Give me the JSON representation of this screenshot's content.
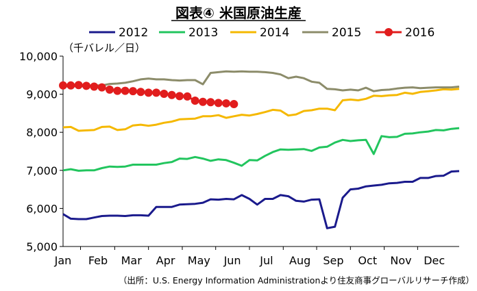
{
  "chart_data": {
    "type": "line",
    "title": "図表④ 米国原油生産",
    "ylabel": "（千バレル／日）",
    "ylim": [
      5000,
      10000
    ],
    "yticks": [
      5000,
      6000,
      7000,
      8000,
      9000,
      10000
    ],
    "ytick_labels": [
      "5,000",
      "6,000",
      "7,000",
      "8,000",
      "9,000",
      "10,000"
    ],
    "x_unit": "week",
    "xlim": [
      1,
      52
    ],
    "month_labels": [
      "Jan",
      "Feb",
      "Mar",
      "Apr",
      "May",
      "Jun",
      "Jul",
      "Aug",
      "Sep",
      "Oct",
      "Nov",
      "Dec"
    ],
    "month_label_weeks": [
      1,
      5.5,
      9.8,
      14.2,
      18.5,
      22.8,
      27.2,
      31.5,
      35.8,
      40.2,
      44.5,
      48.8
    ],
    "grid": false,
    "legend_position": "top",
    "source": "（出所：U.S. Energy Information Administrationより住友商事グローバルリサーチ作成）",
    "series": [
      {
        "name": "2012",
        "color": "#1a1a8c",
        "marker": "none",
        "values": [
          5850,
          5730,
          5720,
          5720,
          5760,
          5800,
          5810,
          5810,
          5800,
          5820,
          5820,
          5810,
          6040,
          6040,
          6040,
          6100,
          6110,
          6120,
          6150,
          6240,
          6230,
          6250,
          6240,
          6350,
          6250,
          6100,
          6250,
          6250,
          6350,
          6320,
          6200,
          6180,
          6230,
          6240,
          5480,
          5520,
          6280,
          6500,
          6520,
          6580,
          6600,
          6620,
          6660,
          6670,
          6700,
          6700,
          6800,
          6800,
          6850,
          6860,
          6970,
          6980
        ]
      },
      {
        "name": "2013",
        "color": "#22c55e",
        "marker": "none",
        "values": [
          7000,
          7030,
          6990,
          7000,
          7000,
          7060,
          7100,
          7090,
          7100,
          7150,
          7150,
          7150,
          7150,
          7190,
          7220,
          7310,
          7300,
          7350,
          7310,
          7250,
          7290,
          7270,
          7200,
          7120,
          7270,
          7260,
          7380,
          7480,
          7550,
          7540,
          7550,
          7560,
          7510,
          7600,
          7620,
          7730,
          7800,
          7770,
          7790,
          7800,
          7430,
          7900,
          7870,
          7880,
          7960,
          7970,
          8000,
          8020,
          8060,
          8050,
          8090,
          8110
        ]
      },
      {
        "name": "2014",
        "color": "#f5b800",
        "marker": "none",
        "values": [
          8130,
          8140,
          8040,
          8050,
          8060,
          8140,
          8150,
          8060,
          8080,
          8180,
          8200,
          8170,
          8200,
          8250,
          8280,
          8340,
          8350,
          8360,
          8420,
          8420,
          8450,
          8380,
          8420,
          8460,
          8440,
          8480,
          8530,
          8590,
          8570,
          8440,
          8470,
          8560,
          8580,
          8620,
          8620,
          8580,
          8840,
          8860,
          8840,
          8880,
          8960,
          8950,
          8970,
          8980,
          9040,
          9010,
          9060,
          9080,
          9100,
          9130,
          9120,
          9140
        ]
      },
      {
        "name": "2015",
        "color": "#8c8c6a",
        "marker": "none",
        "values": [
          9200,
          9220,
          9210,
          9220,
          9230,
          9230,
          9270,
          9280,
          9300,
          9340,
          9390,
          9410,
          9390,
          9390,
          9370,
          9360,
          9370,
          9370,
          9260,
          9560,
          9580,
          9600,
          9590,
          9600,
          9590,
          9590,
          9580,
          9560,
          9520,
          9420,
          9460,
          9420,
          9330,
          9300,
          9140,
          9130,
          9100,
          9120,
          9100,
          9170,
          9080,
          9110,
          9120,
          9150,
          9170,
          9180,
          9160,
          9170,
          9180,
          9180,
          9180,
          9200
        ]
      },
      {
        "name": "2016",
        "color": "#e11d1d",
        "marker": "circle",
        "values": [
          9230,
          9230,
          9240,
          9220,
          9200,
          9180,
          9120,
          9090,
          9090,
          9080,
          9060,
          9040,
          9040,
          9010,
          8980,
          8950,
          8940,
          8830,
          8800,
          8790,
          8770,
          8760,
          8740
        ]
      }
    ]
  }
}
